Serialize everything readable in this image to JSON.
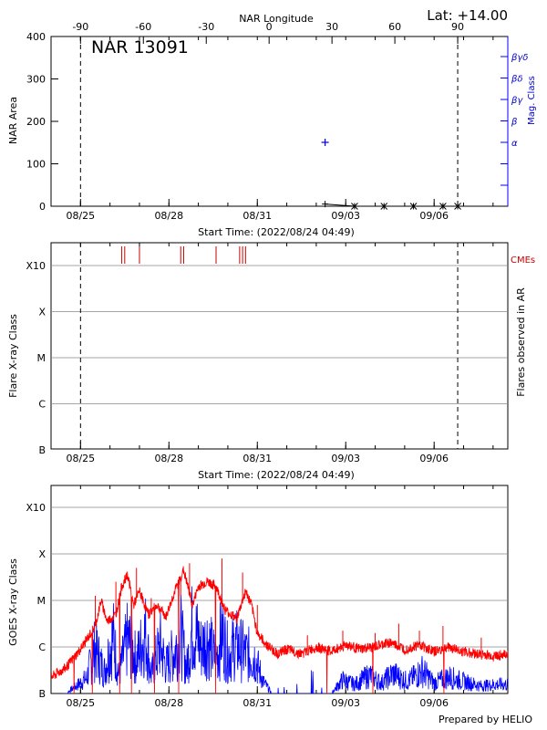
{
  "header": {
    "top_axis_title": "NAR Longitude",
    "latitude": "Lat: +14.00",
    "region": "NAR 13091",
    "footer": "Prepared by HELIO"
  },
  "dates": [
    "08/25",
    "08/28",
    "08/31",
    "09/03",
    "09/06"
  ],
  "start_time": "Start Time: (2022/08/24 04:49)",
  "colors": {
    "axis": "#000000",
    "blue": "#0000ff",
    "red": "#ff0000",
    "cme": "#cc0000",
    "grid": "#888888"
  },
  "chart_data": [
    {
      "id": "nar-area",
      "type": "scatter",
      "ylabel": "NAR Area",
      "ylim": [
        0,
        400
      ],
      "yticks": [
        0,
        100,
        200,
        300,
        400
      ],
      "top_ticks": [
        -90,
        -60,
        -30,
        0,
        30,
        60,
        90
      ],
      "right_axis_label": "Mag. Class",
      "mag_classes": [
        "α",
        "β",
        "βγ",
        "βδ",
        "βγδ"
      ],
      "limb_days": [
        1.0,
        13.8
      ],
      "area_points": [
        {
          "day": 9.3,
          "value": 5
        },
        {
          "day": 10.3,
          "value": 0
        },
        {
          "day": 11.3,
          "value": 0
        },
        {
          "day": 12.3,
          "value": 0
        },
        {
          "day": 13.3,
          "value": 0
        },
        {
          "day": 13.8,
          "value": 0
        }
      ],
      "mag_points": [
        {
          "day": 9.3,
          "class_index": 0
        }
      ]
    },
    {
      "id": "flares",
      "type": "scatter",
      "ylabel": "Flare X-ray Class",
      "right_label": "Flares observed in AR",
      "cme_label": "CMEs",
      "classes": [
        "B",
        "C",
        "M",
        "X",
        "X10"
      ],
      "limb_days": [
        1.0,
        13.8
      ],
      "cme_days": [
        2.4,
        2.5,
        3.0,
        4.4,
        4.5,
        5.6,
        6.4,
        6.5,
        6.6
      ]
    },
    {
      "id": "goes",
      "type": "line",
      "ylabel": "GOES X-ray Class",
      "classes": [
        "B",
        "C",
        "M",
        "X",
        "X10"
      ],
      "xlim": [
        0,
        15.5
      ],
      "long_channel": [
        [
          0.0,
          0.35
        ],
        [
          0.5,
          0.55
        ],
        [
          1.0,
          0.95
        ],
        [
          1.5,
          1.45
        ],
        [
          1.7,
          2.0
        ],
        [
          1.9,
          1.55
        ],
        [
          2.2,
          1.7
        ],
        [
          2.4,
          2.3
        ],
        [
          2.6,
          2.55
        ],
        [
          2.8,
          1.9
        ],
        [
          3.0,
          2.2
        ],
        [
          3.3,
          1.7
        ],
        [
          3.6,
          1.9
        ],
        [
          3.9,
          1.65
        ],
        [
          4.2,
          2.2
        ],
        [
          4.5,
          2.65
        ],
        [
          4.8,
          1.9
        ],
        [
          5.0,
          2.3
        ],
        [
          5.3,
          2.4
        ],
        [
          5.6,
          2.3
        ],
        [
          5.9,
          1.8
        ],
        [
          6.3,
          1.6
        ],
        [
          6.6,
          2.2
        ],
        [
          6.8,
          1.9
        ],
        [
          7.0,
          1.3
        ],
        [
          7.3,
          1.05
        ],
        [
          7.7,
          0.85
        ],
        [
          8.0,
          0.95
        ],
        [
          8.5,
          0.85
        ],
        [
          9.0,
          1.0
        ],
        [
          9.5,
          0.9
        ],
        [
          10.0,
          1.05
        ],
        [
          10.5,
          0.95
        ],
        [
          11.0,
          1.0
        ],
        [
          11.5,
          1.1
        ],
        [
          12.0,
          0.95
        ],
        [
          12.5,
          1.05
        ],
        [
          13.0,
          0.9
        ],
        [
          13.5,
          1.0
        ],
        [
          14.0,
          0.9
        ],
        [
          14.5,
          0.85
        ],
        [
          15.0,
          0.8
        ],
        [
          15.5,
          0.85
        ]
      ],
      "red_spikes": [
        {
          "day": 1.5,
          "peak": 2.1
        },
        {
          "day": 2.2,
          "peak": 2.4
        },
        {
          "day": 2.9,
          "peak": 2.7
        },
        {
          "day": 3.4,
          "peak": 2.05
        },
        {
          "day": 4.4,
          "peak": 2.1
        },
        {
          "day": 4.7,
          "peak": 2.8
        },
        {
          "day": 5.4,
          "peak": 2.45
        },
        {
          "day": 5.8,
          "peak": 2.9
        },
        {
          "day": 6.5,
          "peak": 2.6
        },
        {
          "day": 7.0,
          "peak": 1.9
        },
        {
          "day": 8.7,
          "peak": 1.25
        },
        {
          "day": 9.9,
          "peak": 1.35
        },
        {
          "day": 11.0,
          "peak": 1.3
        },
        {
          "day": 11.8,
          "peak": 1.5
        },
        {
          "day": 12.5,
          "peak": 1.35
        },
        {
          "day": 13.3,
          "peak": 1.45
        },
        {
          "day": 14.6,
          "peak": 1.2
        }
      ],
      "short_channel": [
        [
          0.5,
          0.0
        ],
        [
          1.2,
          0.5
        ],
        [
          1.5,
          1.5
        ],
        [
          1.8,
          0.7
        ],
        [
          2.1,
          1.9
        ],
        [
          2.3,
          0.6
        ],
        [
          2.6,
          1.8
        ],
        [
          2.9,
          1.1
        ],
        [
          3.2,
          2.0
        ],
        [
          3.4,
          0.6
        ],
        [
          3.7,
          1.6
        ],
        [
          3.9,
          0.9
        ],
        [
          4.2,
          1.4
        ],
        [
          4.4,
          1.95
        ],
        [
          4.6,
          0.8
        ],
        [
          4.8,
          2.25
        ],
        [
          5.1,
          1.5
        ],
        [
          5.3,
          1.8
        ],
        [
          5.6,
          1.1
        ],
        [
          5.8,
          2.0
        ],
        [
          6.0,
          1.3
        ],
        [
          6.3,
          1.6
        ],
        [
          6.6,
          1.3
        ],
        [
          6.9,
          1.2
        ],
        [
          7.2,
          0.4
        ],
        [
          7.5,
          0.0
        ],
        [
          9.5,
          0.0
        ],
        [
          9.9,
          0.45
        ],
        [
          10.3,
          0.3
        ],
        [
          10.8,
          0.6
        ],
        [
          11.2,
          0.35
        ],
        [
          11.6,
          0.65
        ],
        [
          12.1,
          0.4
        ],
        [
          12.6,
          0.75
        ],
        [
          13.0,
          0.35
        ],
        [
          13.5,
          0.55
        ],
        [
          14.0,
          0.4
        ],
        [
          14.6,
          0.25
        ],
        [
          15.1,
          0.3
        ]
      ]
    }
  ]
}
